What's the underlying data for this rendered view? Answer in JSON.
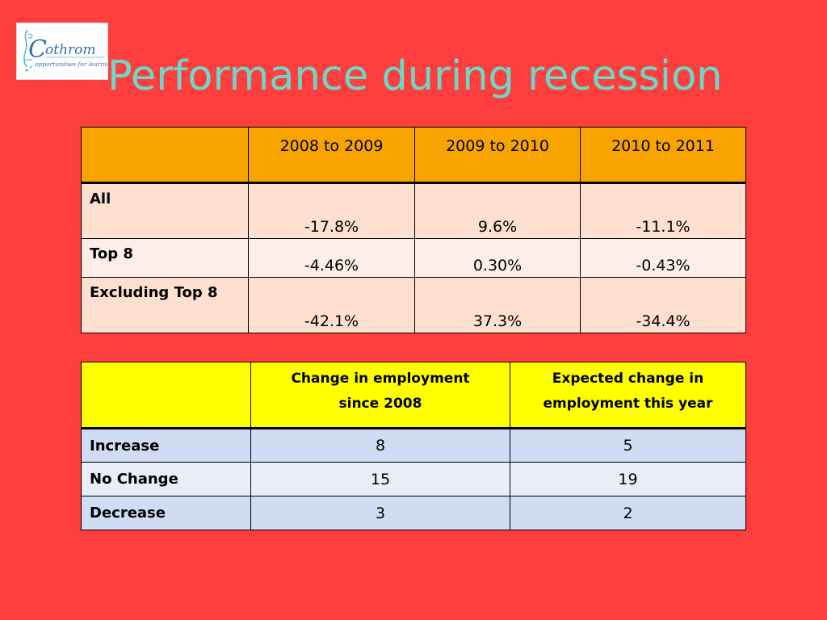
{
  "logo": {
    "name": "Cothrom",
    "tagline": "opportunities for learning"
  },
  "slide": {
    "title": "Performance during recession"
  },
  "table1": {
    "columns": [
      "2008 to 2009",
      "2009 to 2010",
      "2010 to 2011"
    ],
    "rows": [
      {
        "label": "All",
        "values": [
          "-17.8%",
          "9.6%",
          "-11.1%"
        ]
      },
      {
        "label": "Top 8",
        "values": [
          "-4.46%",
          "0.30%",
          "-0.43%"
        ]
      },
      {
        "label": "Excluding Top 8",
        "values": [
          "-42.1%",
          "37.3%",
          "-34.4%"
        ]
      }
    ]
  },
  "table2": {
    "columns": [
      [
        "Change in employment",
        "since 2008"
      ],
      [
        "Expected change in",
        "employment this year"
      ]
    ],
    "rows": [
      {
        "label": "Increase",
        "values": [
          "8",
          "5"
        ]
      },
      {
        "label": "No Change",
        "values": [
          "15",
          "19"
        ]
      },
      {
        "label": "Decrease",
        "values": [
          "3",
          "2"
        ]
      }
    ]
  },
  "colors": {
    "background": "#ff3e3e",
    "title": "#6cd8c8",
    "table1_header": "#f9a300",
    "table1_row_dark": "#fde0cf",
    "table1_row_light": "#fdeee8",
    "table2_header": "#ffff00",
    "table2_row_dark": "#cfdcf3",
    "table2_row_light": "#e8edf8"
  }
}
